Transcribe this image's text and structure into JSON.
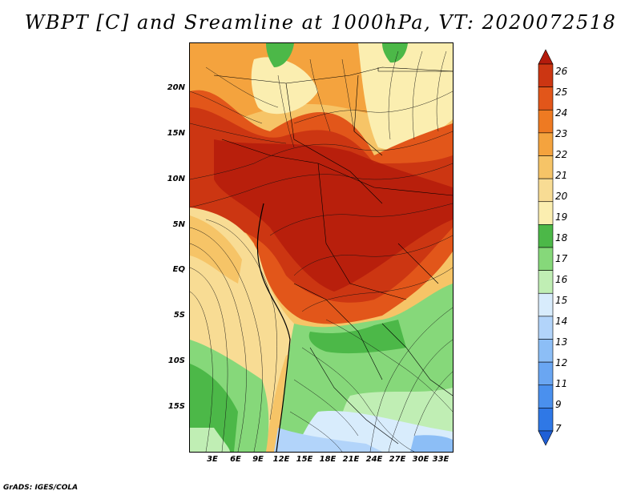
{
  "title": "WBPT [C] and Sreamline at 1000hPa, VT: 2020072518",
  "credit": "GrADS: IGES/COLA",
  "map": {
    "lat_labels": [
      "20N",
      "15N",
      "10N",
      "5N",
      "EQ",
      "5S",
      "10S",
      "15S"
    ],
    "lon_labels": [
      "3E",
      "6E",
      "9E",
      "12E",
      "15E",
      "18E",
      "21E",
      "24E",
      "27E",
      "30E",
      "33E"
    ],
    "lat_range": [
      -20,
      24.5
    ],
    "lon_range": [
      0,
      34
    ]
  },
  "colorbar": {
    "labels": [
      "7",
      "9",
      "11",
      "12",
      "13",
      "14",
      "15",
      "16",
      "17",
      "18",
      "19",
      "20",
      "21",
      "22",
      "23",
      "24",
      "25",
      "26"
    ],
    "colors": [
      "#1f5fd6",
      "#2f78e6",
      "#4a90ee",
      "#6aa6f2",
      "#8cbef6",
      "#b2d4fa",
      "#d8ecfc",
      "#c0eeb4",
      "#86d87a",
      "#4cb848",
      "#fbeeb0",
      "#f8dc94",
      "#f6c467",
      "#f4a33e",
      "#ee7a22",
      "#e2561a",
      "#cc3612",
      "#b41b0c"
    ]
  }
}
